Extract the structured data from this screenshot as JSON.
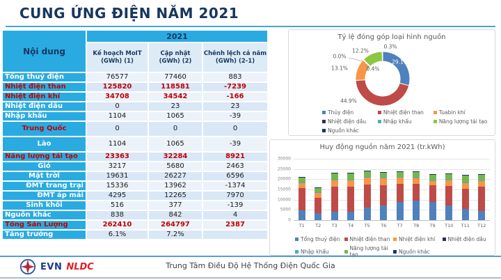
{
  "title": "CUNG ỨNG ĐIỆN NĂM 2021",
  "table": {
    "row_header": "Nội dung",
    "year_header": "2021",
    "columns": [
      "Kế hoạch MoIT\n(GWh) (1)",
      "Cập nhật\n(GWh) (2)",
      "Chênh lệch cả năm\n(GWh) (2-1)"
    ],
    "rows": [
      {
        "label": "Tổng thuỷ điện",
        "align": "left",
        "label_color": "white",
        "values": [
          "76577",
          "77460",
          "883"
        ],
        "value_color": "black",
        "tall": false
      },
      {
        "label": "Nhiệt điện than",
        "align": "left",
        "label_color": "red",
        "values": [
          "125820",
          "118581",
          "-7239"
        ],
        "value_color": "red",
        "tall": false
      },
      {
        "label": "Nhiệt điện khí",
        "align": "left",
        "label_color": "red",
        "values": [
          "34708",
          "34542",
          "-166"
        ],
        "value_color": "red",
        "tall": false
      },
      {
        "label": "Nhiệt điện dầu",
        "align": "left",
        "label_color": "white",
        "values": [
          "0",
          "23",
          "23"
        ],
        "value_color": "black",
        "tall": false
      },
      {
        "label": "Nhập khẩu",
        "align": "left",
        "label_color": "white",
        "values": [
          "1104",
          "1065",
          "-39"
        ],
        "value_color": "black",
        "tall": false
      },
      {
        "label": "Trung Quốc",
        "align": "center",
        "label_color": "red",
        "values": [
          "0",
          "0",
          "0"
        ],
        "value_color": "black",
        "tall": true
      },
      {
        "label": "Lào",
        "align": "center",
        "label_color": "white",
        "values": [
          "1104",
          "1065",
          "-39"
        ],
        "value_color": "black",
        "tall": true
      },
      {
        "label": "Năng lượng tái tạo",
        "align": "left",
        "label_color": "red",
        "values": [
          "23363",
          "32284",
          "8921"
        ],
        "value_color": "red",
        "tall": false
      },
      {
        "label": "Gió",
        "align": "center",
        "label_color": "white",
        "values": [
          "3217",
          "5680",
          "2463"
        ],
        "value_color": "black",
        "tall": false
      },
      {
        "label": "Mặt trời",
        "align": "center",
        "label_color": "white",
        "values": [
          "19631",
          "26227",
          "6596"
        ],
        "value_color": "black",
        "tall": false
      },
      {
        "label": "ĐMT trang trại",
        "align": "right",
        "label_color": "white",
        "values": [
          "15336",
          "13962",
          "-1374"
        ],
        "value_color": "black",
        "tall": false
      },
      {
        "label": "ĐMT áp mái",
        "align": "right",
        "label_color": "white",
        "values": [
          "4295",
          "12265",
          "7970"
        ],
        "value_color": "black",
        "tall": false
      },
      {
        "label": "Sinh khối",
        "align": "center",
        "label_color": "white",
        "values": [
          "516",
          "377",
          "-139"
        ],
        "value_color": "black",
        "tall": false
      },
      {
        "label": "Nguồn khác",
        "align": "left",
        "label_color": "white",
        "values": [
          "838",
          "842",
          "4"
        ],
        "value_color": "black",
        "tall": false
      },
      {
        "label": "Tổng Sản Lượng",
        "align": "left",
        "label_color": "red",
        "values": [
          "262410",
          "264797",
          "2387"
        ],
        "value_color": "red",
        "tall": false
      },
      {
        "label": "Tăng trưởng",
        "align": "left",
        "label_color": "white",
        "values": [
          "6.1%",
          "7.2%",
          ""
        ],
        "value_color": "black",
        "tall": false
      }
    ]
  },
  "chart_data": [
    {
      "type": "pie",
      "subtype": "donut",
      "title": "Tỷ lệ đóng góp loại hình nguồn",
      "labels": [
        "Thủy điện",
        "Nhiệt điện than",
        "Tuabin khí",
        "Nhiệt điện dầu",
        "Nhập khẩu",
        "Năng lượng tái tạo",
        "Nguồn khác"
      ],
      "values": [
        29.1,
        44.9,
        13.1,
        0.0,
        0.4,
        12.2,
        0.3
      ],
      "value_labels": [
        "29.1%",
        "44.9%",
        "13.1%",
        "0.0%",
        "0.4%",
        "12.2%",
        "0.3%"
      ],
      "colors": [
        "#4F81BD",
        "#BE4B48",
        "#F79646",
        "#2B2E52",
        "#4BACC6",
        "#8DC63F",
        "#17375E"
      ],
      "legend_position": "bottom"
    },
    {
      "type": "bar",
      "stacked": true,
      "title": "Huy động nguồn năm 2021 (tr.kWh)",
      "categories": [
        "T1",
        "T2",
        "T3",
        "T4",
        "T5",
        "T6",
        "T7",
        "T8",
        "T9",
        "T10",
        "T11",
        "T12"
      ],
      "series": [
        {
          "name": "Tổng thuỷ điện",
          "color": "#4F81BD",
          "values": [
            4900,
            3500,
            4100,
            4200,
            6000,
            7000,
            9000,
            9400,
            8900,
            7200,
            5600,
            4300
          ]
        },
        {
          "name": "Nhiệt điện than",
          "color": "#BE4B48",
          "values": [
            10800,
            7500,
            12300,
            12300,
            11400,
            10200,
            8800,
            8300,
            8000,
            9500,
            9700,
            12200
          ]
        },
        {
          "name": "Nhiệt điện khí",
          "color": "#F79646",
          "values": [
            2700,
            2500,
            3200,
            3200,
            3600,
            3400,
            3100,
            2900,
            2400,
            2900,
            3100,
            2800
          ]
        },
        {
          "name": "Nhiệt điện dầu",
          "color": "#2B2E52",
          "values": [
            0,
            0,
            0,
            0,
            5,
            5,
            5,
            5,
            0,
            0,
            0,
            0
          ]
        },
        {
          "name": "Nhập khẩu",
          "color": "#4BACC6",
          "values": [
            90,
            85,
            90,
            90,
            90,
            90,
            90,
            90,
            90,
            90,
            85,
            90
          ]
        },
        {
          "name": "Năng lượng tái tạo",
          "color": "#77B64E",
          "values": [
            2500,
            2500,
            3300,
            3200,
            3100,
            2800,
            2900,
            3000,
            2900,
            3000,
            3500,
            3100
          ]
        },
        {
          "name": "Nguồn khác",
          "color": "#17375E",
          "values": [
            70,
            70,
            70,
            70,
            70,
            70,
            70,
            70,
            70,
            70,
            70,
            70
          ]
        }
      ],
      "ylim": [
        0,
        30000
      ],
      "ytick_step": 5000,
      "grid": true,
      "legend_position": "bottom"
    }
  ],
  "footer": {
    "logo_evn": "EVN",
    "logo_nldc": "NLDC",
    "center_text": "Trung Tâm Điều Độ Hệ Thống Điện Quốc Gia"
  }
}
